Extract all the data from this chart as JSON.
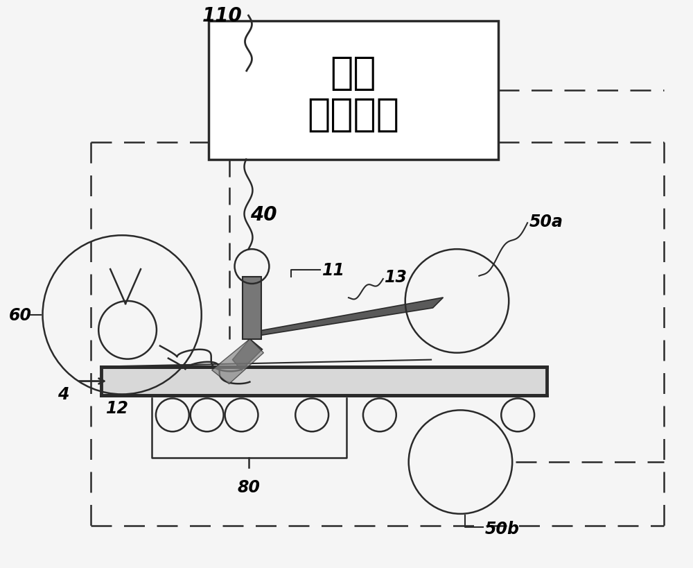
{
  "bg_color": "#f5f5f5",
  "box_text_line1": "速度",
  "box_text_line2": "控制单元",
  "label_110": "110",
  "label_40": "40",
  "label_60": "60",
  "label_11": "11",
  "label_13": "13",
  "label_12": "12",
  "label_4": "4",
  "label_50a": "50a",
  "label_50b": "50b",
  "label_80": "80",
  "lc": "#2a2a2a",
  "lc_gray": "#555555",
  "dash_color": "#2a2a2a"
}
